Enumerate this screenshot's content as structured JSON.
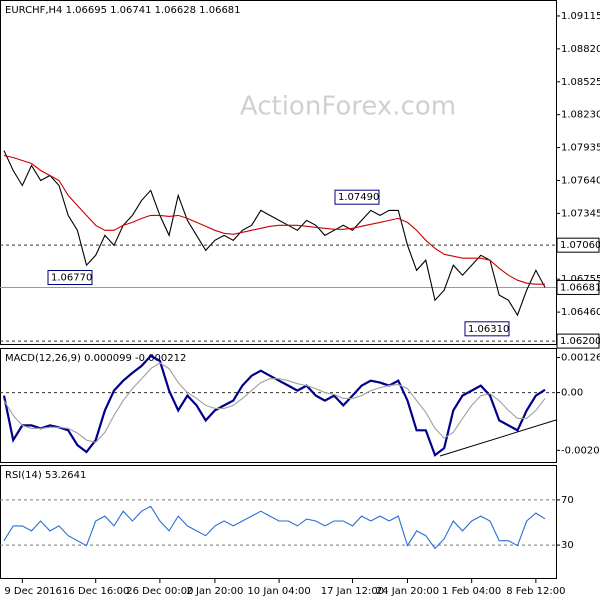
{
  "chart_data": [
    {
      "type": "line",
      "title": "EURCHF,H4  1.06695 1.06741 1.06628 1.06681",
      "watermark": "ActionForex.com",
      "categories": [
        null,
        null,
        "9 Dec 2016",
        null,
        null,
        null,
        null,
        null,
        null,
        null,
        "16 Dec 16:00",
        null,
        null,
        null,
        null,
        null,
        null,
        "26 Dec 00:00",
        null,
        null,
        null,
        null,
        null,
        "2 Jan 20:00",
        null,
        null,
        null,
        null,
        null,
        null,
        "10 Jan 04:00",
        null,
        null,
        null,
        null,
        null,
        null,
        null,
        "17 Jan 12:00",
        null,
        null,
        null,
        null,
        null,
        "24 Jan 20:00",
        null,
        null,
        null,
        null,
        null,
        null,
        "1 Feb 04:00",
        null,
        null,
        null,
        null,
        null,
        null,
        "8 Feb 12:00",
        null
      ],
      "series": [
        {
          "color": "#000000",
          "values": [
            1.07908,
            1.07729,
            1.07595,
            1.07774,
            1.0764,
            1.07685,
            1.07595,
            1.07327,
            1.07193,
            1.0688,
            1.06969,
            1.07148,
            1.07059,
            1.07238,
            1.07327,
            1.07461,
            1.07551,
            1.07327,
            1.07148,
            1.07506,
            1.07282,
            1.07148,
            1.07014,
            1.07104,
            1.07148,
            1.07104,
            1.07193,
            1.07238,
            1.07372,
            1.07327,
            1.07282,
            1.07238,
            1.07193,
            1.07282,
            1.07238,
            1.07148,
            1.07193,
            1.07238,
            1.07193,
            1.07282,
            1.07372,
            1.07327,
            1.07372,
            1.07372,
            1.07059,
            1.06835,
            1.06925,
            1.06567,
            1.06657,
            1.0688,
            1.06791,
            1.0688,
            1.06969,
            1.06925,
            1.06612,
            1.06567,
            1.06433,
            1.06657,
            1.06835,
            1.06681
          ]
        },
        {
          "color": "#cc0000",
          "values": [
            1.07863,
            1.07846,
            1.07819,
            1.07792,
            1.07729,
            1.07685,
            1.0764,
            1.07506,
            1.07416,
            1.07327,
            1.07238,
            1.07193,
            1.07193,
            1.07238,
            1.07264,
            1.073,
            1.07327,
            1.07327,
            1.07318,
            1.07327,
            1.073,
            1.07264,
            1.07229,
            1.07193,
            1.07166,
            1.07157,
            1.07175,
            1.07193,
            1.07211,
            1.07229,
            1.07238,
            1.07238,
            1.07238,
            1.07229,
            1.0722,
            1.07211,
            1.07202,
            1.07202,
            1.07211,
            1.07229,
            1.07247,
            1.07264,
            1.07282,
            1.073,
            1.07264,
            1.07193,
            1.07104,
            1.07032,
            1.06978,
            1.06961,
            1.06943,
            1.06943,
            1.06943,
            1.06925,
            1.06853,
            1.06791,
            1.06746,
            1.06719,
            1.0671,
            1.0671
          ]
        }
      ],
      "ylim": [
        1.06165,
        1.09249
      ],
      "yticks": [
        1.09115,
        {
          "value": 1.0882,
          "label": "1.08820"
        },
        1.08525,
        {
          "value": 1.0823,
          "label": "1.08230"
        },
        1.07935,
        {
          "value": 1.0764,
          "label": "1.07640"
        },
        1.07345,
        1.06755,
        {
          "value": 1.0646,
          "label": "1.06460"
        }
      ],
      "levels": [
        {
          "value": 1.0706,
          "label": "1.07060",
          "style": "dashed"
        },
        {
          "value": 1.06681,
          "label": "1.06681",
          "style": "solid"
        },
        {
          "value": 1.062,
          "label": "1.06200",
          "style": "dashed"
        }
      ],
      "annotations": [
        {
          "value": 1.0749,
          "label": "1.07490"
        },
        {
          "value": 1.0677,
          "label": "1.06770"
        },
        {
          "value": 1.0631,
          "label": "1.06310"
        }
      ]
    },
    {
      "type": "line",
      "title": "MACD(12,26,9) 0.000099 -0.000212",
      "series": [
        {
          "color": "#00008b",
          "values": [
            -0.00011,
            -0.00171,
            -0.00118,
            -0.00118,
            -0.00129,
            -0.00118,
            -0.00125,
            -0.00136,
            -0.00189,
            -0.00214,
            -0.00171,
            -0.00064,
            7e-05,
            0.00043,
            0.00071,
            0.00096,
            0.00132,
            0.00114,
            7e-05,
            -0.00064,
            -0.00011,
            -0.00046,
            -0.001,
            -0.00064,
            -0.00046,
            -0.00029,
            0.00025,
            0.00061,
            0.00079,
            0.00061,
            0.00043,
            0.00025,
            7e-05,
            0.00025,
            -0.00011,
            -0.00029,
            -0.00011,
            -0.00046,
            -0.00011,
            0.00025,
            0.00043,
            0.00036,
            0.00025,
            0.00043,
            -0.00029,
            -0.00136,
            -0.00136,
            -0.00225,
            -0.002,
            -0.00064,
            -0.00011,
            7e-05,
            0.00025,
            -0.00011,
            -0.001,
            -0.00118,
            -0.00136,
            -0.00064,
            -0.00011,
            0.0001
          ]
        },
        {
          "color": "#a0a0a0",
          "values": [
            -0.00029,
            -0.00082,
            -0.00118,
            -0.00129,
            -0.00129,
            -0.00125,
            -0.00125,
            -0.00129,
            -0.00146,
            -0.00171,
            -0.00179,
            -0.00143,
            -0.00082,
            -0.00029,
            0.00014,
            0.0005,
            0.00086,
            0.00107,
            0.00086,
            0.00036,
            0,
            -0.00021,
            -0.00046,
            -0.00057,
            -0.00057,
            -0.00046,
            -0.00021,
            7e-05,
            0.00036,
            0.0005,
            0.0005,
            0.00043,
            0.00032,
            0.00025,
            0.00014,
            0,
            -7e-05,
            -0.00021,
            -0.00021,
            -0.00011,
            7e-05,
            0.00018,
            0.00025,
            0.00029,
            0.00014,
            -0.00029,
            -0.00071,
            -0.00129,
            -0.00164,
            -0.00143,
            -0.00093,
            -0.00046,
            -0.00011,
            -4e-05,
            -0.00029,
            -0.00064,
            -0.00093,
            -0.00093,
            -0.00064,
            -0.00021
          ]
        }
      ],
      "ylim": [
        -0.0025,
        0.00157
      ],
      "yticks": [
        0.001263,
        {
          "value": 0,
          "label": "0.00"
        },
        -0.00208
      ],
      "levels": [
        {
          "value": 0,
          "style": "dashed"
        }
      ]
    },
    {
      "type": "line",
      "title": "RSI(14) 53.2641",
      "series": [
        {
          "color": "#2a6fd6",
          "values": [
            33.9,
            47,
            47,
            42.6,
            51.3,
            42.6,
            47,
            38.3,
            33.9,
            29.6,
            51.3,
            55.7,
            47,
            60,
            51.3,
            60,
            64.3,
            51.3,
            42.6,
            55.7,
            47,
            42.6,
            38.3,
            47,
            51.3,
            47,
            51.3,
            55.7,
            60,
            55.7,
            51.3,
            51.3,
            47,
            53,
            51.3,
            47,
            51.3,
            51.3,
            47,
            55.7,
            51.3,
            55.7,
            51.3,
            55.7,
            29.6,
            42.6,
            38.3,
            27,
            35.7,
            51.3,
            42.6,
            51.3,
            55.7,
            51.3,
            33.9,
            33.9,
            29.6,
            51.3,
            58.3,
            53.26
          ]
        }
      ],
      "ylim": [
        0,
        100
      ],
      "yticks": [
        70,
        30
      ],
      "grid": "dashed"
    }
  ]
}
